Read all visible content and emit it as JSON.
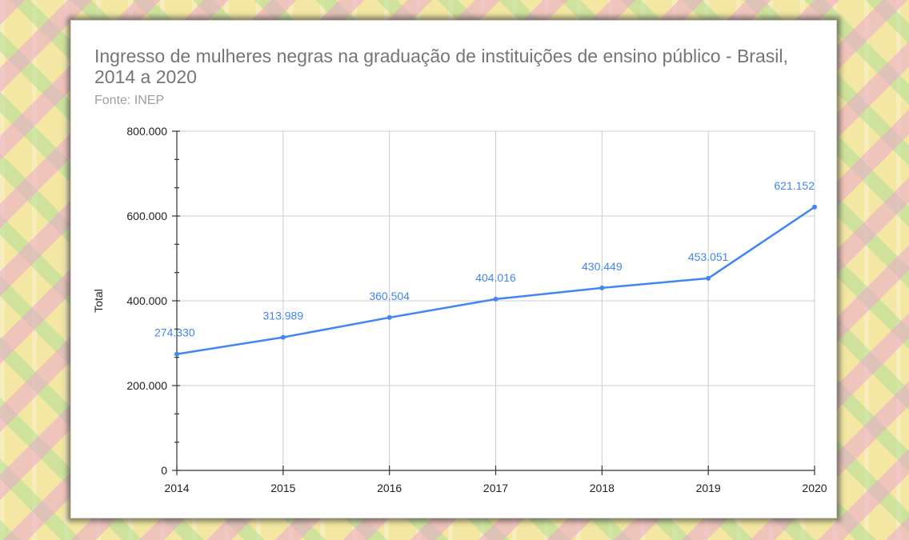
{
  "chart_data": {
    "type": "line",
    "title": "Ingresso de mulheres negras na graduação de instituições de ensino público - Brasil, 2014 a 2020",
    "subtitle": "Fonte: INEP",
    "xlabel": "",
    "ylabel": "Total",
    "x": [
      "2014",
      "2015",
      "2016",
      "2017",
      "2018",
      "2019",
      "2020"
    ],
    "series": [
      {
        "values": [
          274330,
          313989,
          360504,
          404016,
          430449,
          453051,
          621152
        ],
        "labels": [
          "274.330",
          "313.989",
          "360.504",
          "404.016",
          "430.449",
          "453.051",
          "621.152"
        ]
      }
    ],
    "ylim": [
      0,
      800000
    ],
    "yticks": [
      0,
      200000,
      400000,
      600000,
      800000
    ],
    "ytick_labels": [
      "0",
      "200.000",
      "400.000",
      "600.000",
      "800.000"
    ],
    "grid": true,
    "line_color": "#4285f4",
    "label_color": "#4285f4"
  }
}
